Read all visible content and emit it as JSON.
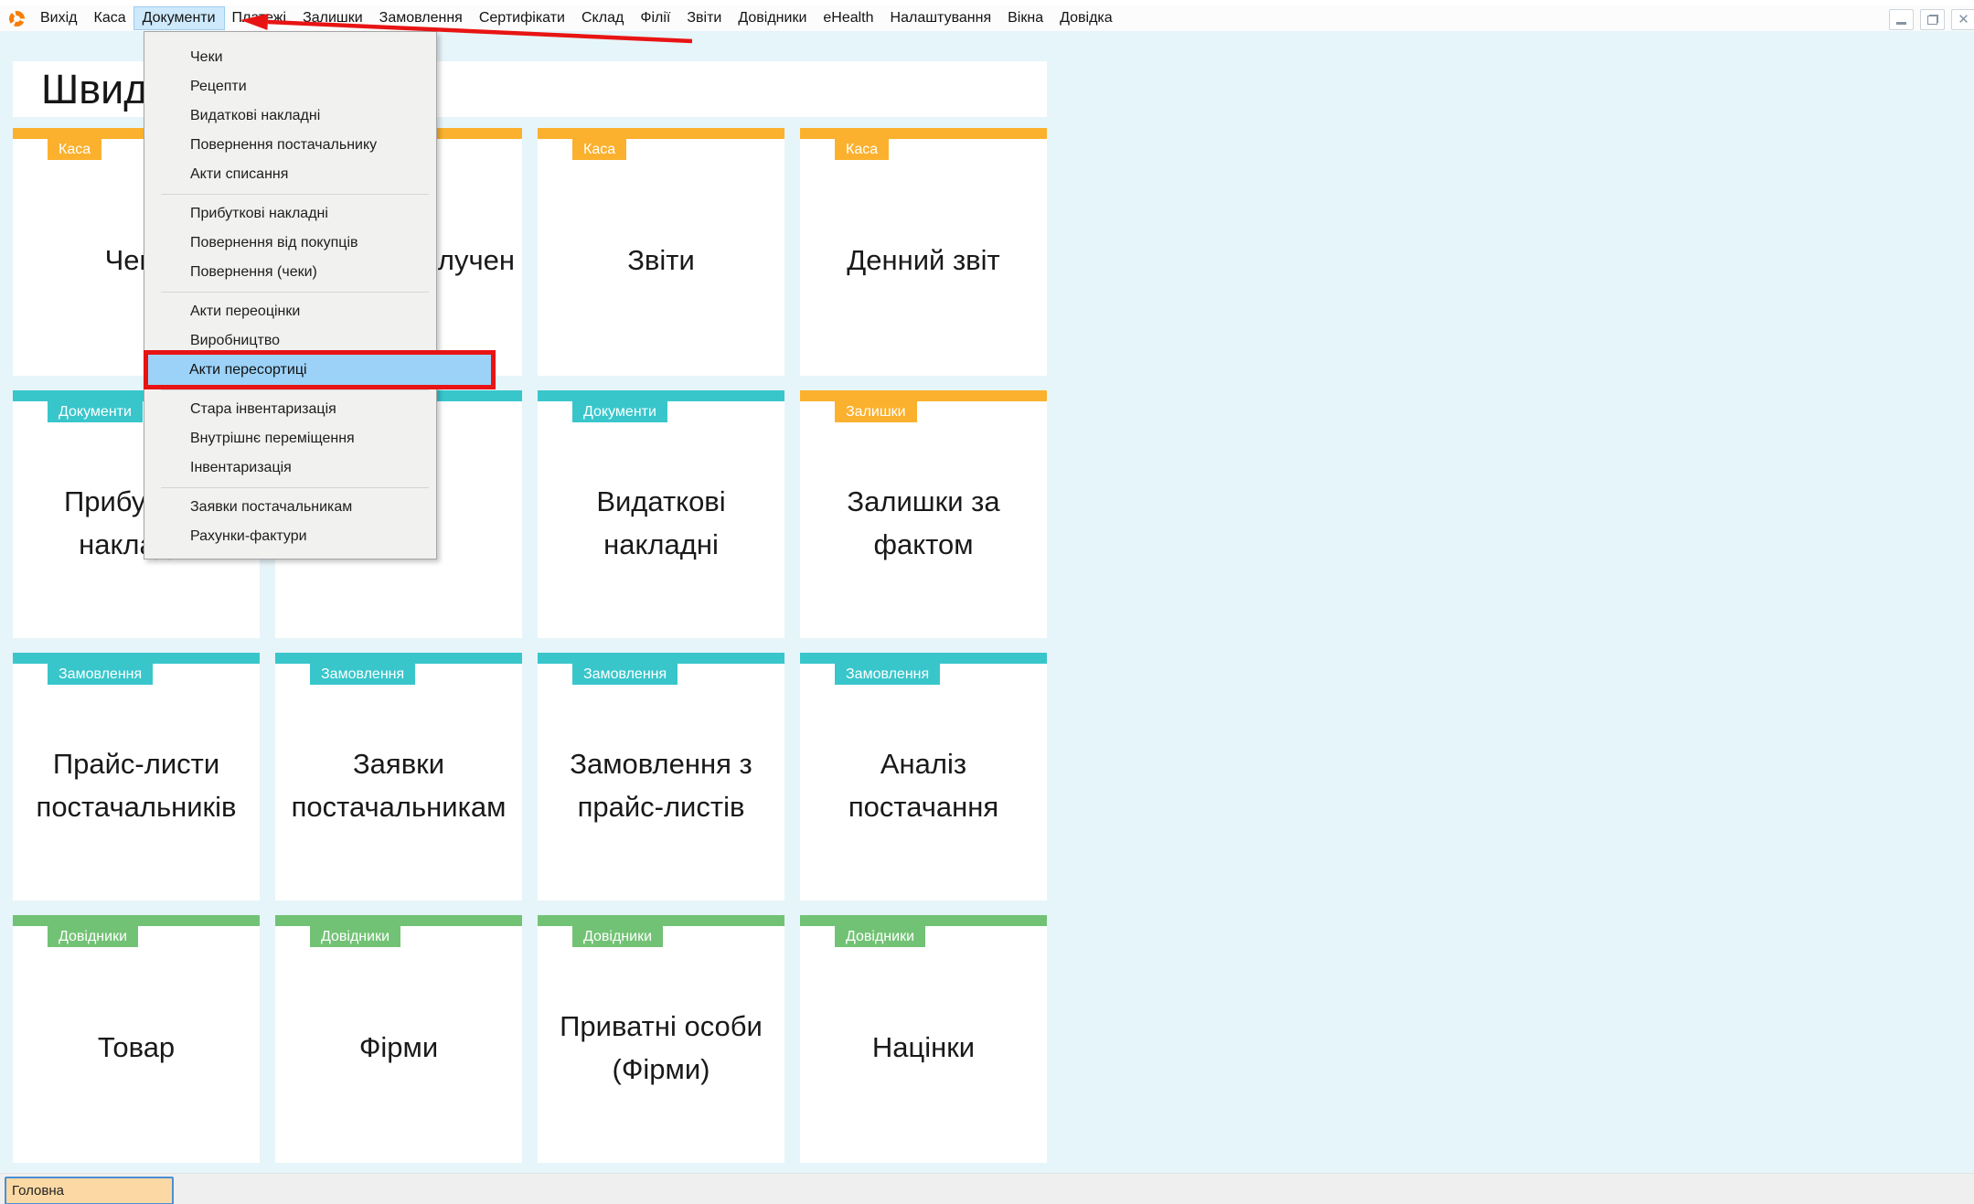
{
  "menubar": {
    "items": [
      "Вихід",
      "Каса",
      "Документи",
      "Платежі",
      "Залишки",
      "Замовлення",
      "Сертифікати",
      "Склад",
      "Філії",
      "Звіти",
      "Довідники",
      "eHealth",
      "Налаштування",
      "Вікна",
      "Довідка"
    ],
    "active_item": "Документи",
    "active_index": 2
  },
  "window_controls": {
    "icons": [
      "minimize-icon",
      "restore-icon",
      "close-icon"
    ]
  },
  "dropdown": {
    "groups": [
      [
        "Чеки",
        "Рецепти",
        "Видаткові накладні",
        "Повернення постачальнику",
        "Акти списання"
      ],
      [
        "Прибуткові накладні",
        "Повернення від покупців",
        "Повернення (чеки)"
      ],
      [
        "Акти переоцінки",
        "Виробництво",
        "Акти пересортиці"
      ],
      [
        "Стара інвентаризація",
        "Внутрішнє переміщення",
        "Інвентаризація"
      ],
      [
        "Заявки постачальникам",
        "Рахунки-фактури"
      ]
    ],
    "highlighted": "Акти пересортиці"
  },
  "page": {
    "title": "Швидкий доступ"
  },
  "grid": {
    "rows": [
      {
        "tiles": [
          {
            "category": "Каса",
            "color": "orange",
            "label": "Чеки"
          },
          {
            "category": "",
            "color": "orange",
            "label": "лучен",
            "frag": true
          },
          {
            "category": "Каса",
            "color": "orange",
            "label": "Звіти"
          },
          {
            "category": "Каса",
            "color": "orange",
            "label": "Денний звіт"
          }
        ]
      },
      {
        "tiles": [
          {
            "category": "Документи",
            "color": "teal",
            "label": "Прибуткові накладні"
          },
          {
            "category": "",
            "color": "teal",
            "label": ""
          },
          {
            "category": "Документи",
            "color": "teal",
            "label": "Видаткові\nнакладні"
          },
          {
            "category": "Залишки",
            "color": "orange",
            "label": "Залишки за\nфактом"
          }
        ]
      },
      {
        "tiles": [
          {
            "category": "Замовлення",
            "color": "teal",
            "label": "Прайс-листи\nпостачальників"
          },
          {
            "category": "Замовлення",
            "color": "teal",
            "label": "Заявки\nпостачальникам"
          },
          {
            "category": "Замовлення",
            "color": "teal",
            "label": "Замовлення з\nпрайс-листів"
          },
          {
            "category": "Замовлення",
            "color": "teal",
            "label": "Аналіз постачання"
          }
        ]
      },
      {
        "tiles": [
          {
            "category": "Довідники",
            "color": "green",
            "label": "Товар"
          },
          {
            "category": "Довідники",
            "color": "green",
            "label": "Фірми"
          },
          {
            "category": "Довідники",
            "color": "green",
            "label": "Приватні особи\n(Фірми)"
          },
          {
            "category": "Довідники",
            "color": "green",
            "label": "Націнки"
          }
        ]
      }
    ]
  },
  "statusbar": {
    "active_tab": "Головна"
  },
  "colors": {
    "orange": "#fbb12d",
    "teal": "#38c6cb",
    "green": "#72c275",
    "page_bg": "#e6f5f9",
    "menu_bg": "#f1f1f0",
    "menu_highlight": "#9cd2f7",
    "menubar_active_bg": "#cde9fb",
    "annotation_red": "#e81414",
    "status_tab_bg": "#fcd9a4",
    "status_tab_border": "#4a90d8",
    "statusbar_bg": "#efefef"
  }
}
